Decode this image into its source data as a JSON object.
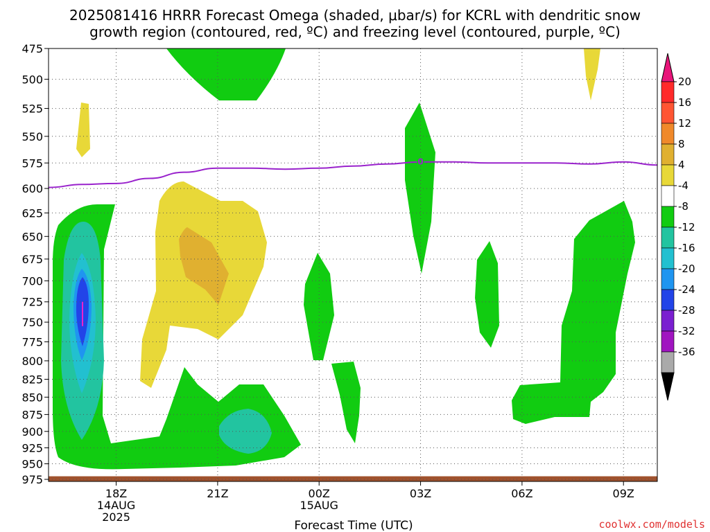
{
  "title_line1": "2025081416 HRRR Forecast Omega (shaded, μbar/s) for KCRL with dendritic snow",
  "title_line2": "growth region (contoured, red, ºC) and freezing level (contoured, purple, ºC)",
  "credit": "coolwx.com/models",
  "chart_data": {
    "type": "contour",
    "xlabel": "Forecast Time (UTC)",
    "ylabel": "",
    "x_range_hours": [
      0,
      18
    ],
    "y_scale": "pressure (inverted, top 475 to bottom 975)",
    "ylim": [
      975,
      475
    ],
    "y_ticks": [
      475,
      500,
      525,
      550,
      575,
      600,
      625,
      650,
      675,
      700,
      725,
      750,
      775,
      800,
      825,
      850,
      875,
      900,
      925,
      950,
      975
    ],
    "x_ticks": [
      {
        "hour": 2,
        "label": "18Z",
        "sub1": "14AUG",
        "sub2": "2025"
      },
      {
        "hour": 5,
        "label": "21Z",
        "sub1": "",
        "sub2": ""
      },
      {
        "hour": 8,
        "label": "00Z",
        "sub1": "15AUG",
        "sub2": ""
      },
      {
        "hour": 11,
        "label": "03Z",
        "sub1": "",
        "sub2": ""
      },
      {
        "hour": 14,
        "label": "06Z",
        "sub1": "",
        "sub2": ""
      },
      {
        "hour": 17,
        "label": "09Z",
        "sub1": "",
        "sub2": ""
      }
    ],
    "grid": true,
    "colorbar": {
      "placement": "right",
      "levels": [
        20,
        16,
        12,
        8,
        4,
        -4,
        -8,
        -12,
        -16,
        -20,
        -24,
        -28,
        -32,
        -36
      ],
      "colors": [
        "#ff2a2a",
        "#ff5533",
        "#f0892a",
        "#e0b030",
        "#e8d838",
        "#ffffff",
        "#11cc11",
        "#22c4a0",
        "#22c0d0",
        "#1f95f0",
        "#2244e8",
        "#7a1fd0",
        "#a015c0",
        "#aaaaaa"
      ],
      "over_color": "#e8157a",
      "under_color": "#000000"
    },
    "freezing_level": {
      "color": "#9922cc",
      "label": "0",
      "label_hour": 11,
      "points": [
        [
          0,
          599
        ],
        [
          1,
          596
        ],
        [
          2,
          595
        ],
        [
          3,
          590
        ],
        [
          4,
          584
        ],
        [
          5,
          580
        ],
        [
          6,
          580
        ],
        [
          7,
          581
        ],
        [
          8,
          580
        ],
        [
          9,
          578
        ],
        [
          10,
          576
        ],
        [
          11,
          574
        ],
        [
          12,
          574
        ],
        [
          13,
          575
        ],
        [
          14,
          575
        ],
        [
          15,
          575
        ],
        [
          16,
          576
        ],
        [
          17,
          574
        ],
        [
          18,
          577
        ]
      ]
    },
    "dendritic_label": {
      "text": "-12",
      "color": "#ee22cc",
      "hour": 1.0,
      "pressure": 740
    },
    "terrain_band": {
      "color": "#a0522d",
      "pressure_top": 970
    }
  }
}
